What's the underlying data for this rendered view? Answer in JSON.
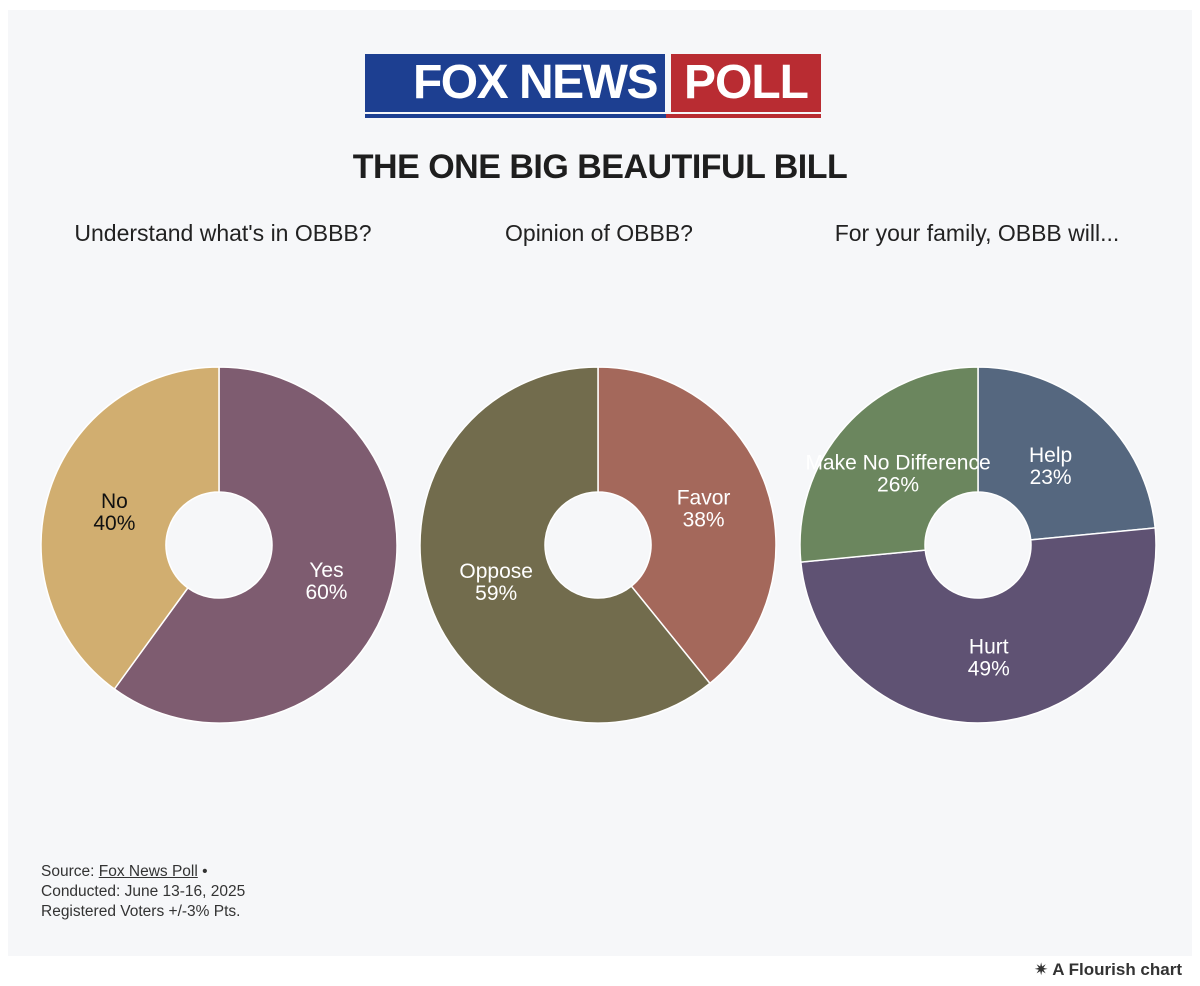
{
  "logo": {
    "left": "FOX NEWS",
    "right": "POLL"
  },
  "title": "THE ONE BIG BEAUTIFUL BILL",
  "chart_data": [
    {
      "type": "pie",
      "donut": true,
      "title": "Understand what's in OBBB?",
      "slices": [
        {
          "label": "Yes",
          "value": 60,
          "text": "60%",
          "color": "#7e5c70",
          "label_color": "#ffffff"
        },
        {
          "label": "No",
          "value": 40,
          "text": "40%",
          "color": "#d1ae70",
          "label_color": "#111111"
        }
      ]
    },
    {
      "type": "pie",
      "donut": true,
      "title": "Opinion of OBBB?",
      "slices": [
        {
          "label": "Favor",
          "value": 38,
          "text": "38%",
          "color": "#a4685b",
          "label_color": "#ffffff"
        },
        {
          "label": "Oppose",
          "value": 59,
          "text": "59%",
          "color": "#726c4d",
          "label_color": "#ffffff"
        }
      ]
    },
    {
      "type": "pie",
      "donut": true,
      "title": "For your family, OBBB will...",
      "slices": [
        {
          "label": "Help",
          "value": 23,
          "text": "23%",
          "color": "#55677f",
          "label_color": "#ffffff"
        },
        {
          "label": "Hurt",
          "value": 49,
          "text": "49%",
          "color": "#5f5273",
          "label_color": "#ffffff"
        },
        {
          "label": "Make No Difference",
          "value": 26,
          "text": "26%",
          "color": "#6b865e",
          "label_color": "#ffffff"
        }
      ]
    }
  ],
  "source": {
    "prefix": "Source: ",
    "link": "Fox News Poll",
    "suffix": " •",
    "conducted": "Conducted: June 13-16, 2025",
    "voters": "Registered Voters +/-3% Pts."
  },
  "credit": "A Flourish chart"
}
